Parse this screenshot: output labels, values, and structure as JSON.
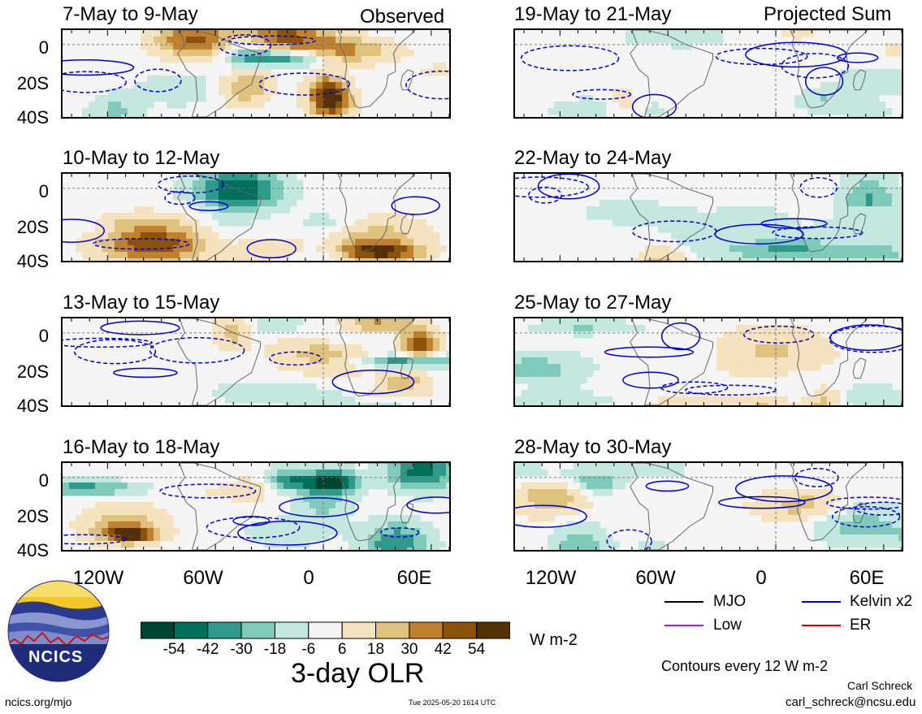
{
  "chart_data": {
    "type": "heatmap",
    "variable": "3-day OLR",
    "units": "W m-2",
    "x_ticks": [
      "120W",
      "60W",
      "0",
      "60E"
    ],
    "y_ticks": [
      "0",
      "20S",
      "40S"
    ],
    "lon_range": [
      -145,
      70
    ],
    "lat_range": [
      -40,
      8
    ],
    "colorbar": {
      "labels": [
        "-54",
        "-42",
        "-30",
        "-18",
        "-6",
        "6",
        "18",
        "30",
        "42",
        "54"
      ],
      "colors": [
        "#00432f",
        "#00705a",
        "#2f9a89",
        "#7fcbbb",
        "#c4e8df",
        "#f5f5f5",
        "#f4e3be",
        "#dfc27d",
        "#bf812d",
        "#8c510a",
        "#543005"
      ]
    },
    "contour_note": "Contours every 12 W m-2",
    "legend": [
      {
        "label": "MJO",
        "color": "#000000"
      },
      {
        "label": "Kelvin x2",
        "color": "#0000cc"
      },
      {
        "label": "Low",
        "color": "#a020f0"
      },
      {
        "label": "ER",
        "color": "#dd0000"
      }
    ],
    "panels": [
      {
        "title": "7-May to 9-May",
        "tag": "Observed",
        "column": "left"
      },
      {
        "title": "10-May to 12-May",
        "tag": "",
        "column": "left"
      },
      {
        "title": "13-May to 15-May",
        "tag": "",
        "column": "left"
      },
      {
        "title": "16-May to 18-May",
        "tag": "",
        "column": "left"
      },
      {
        "title": "19-May to 21-May",
        "tag": "Projected Sum",
        "column": "right"
      },
      {
        "title": "22-May to 24-May",
        "tag": "",
        "column": "right"
      },
      {
        "title": "25-May to 27-May",
        "tag": "",
        "column": "right"
      },
      {
        "title": "28-May to 30-May",
        "tag": "",
        "column": "right"
      }
    ]
  },
  "footer": {
    "logo_text": "NCICS",
    "url": "ncics.org/mjo",
    "timestamp": "Tue 2025-05-20 1614 UTC",
    "author": "Carl Schreck",
    "email": "carl_schreck@ncsu.edu"
  }
}
